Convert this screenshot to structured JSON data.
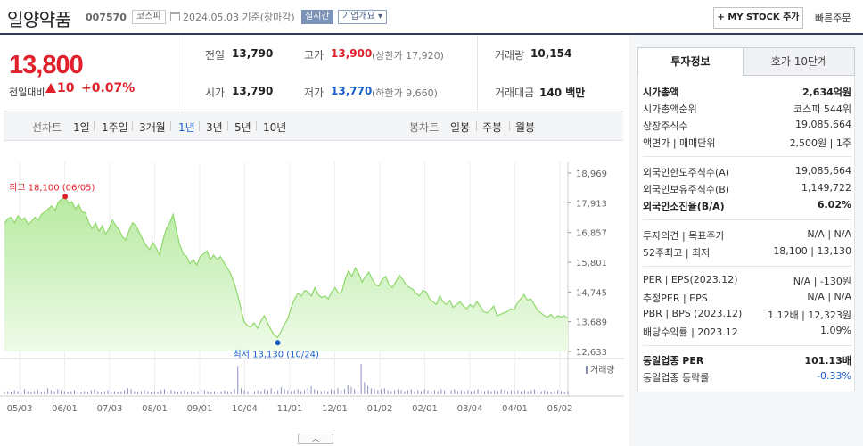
{
  "header": {
    "name": "일양약품",
    "code": "007570",
    "market_badge": "코스피",
    "date_text": "2024.05.03  기준(장마감)",
    "live_badge": "실시간",
    "overview_button": "기업개요 ▾",
    "mystock_button": "+ MY STOCK 추가",
    "quick_order": "빠른주문"
  },
  "price": {
    "current": "13,800",
    "change_label": "전일대비",
    "change_value": "10",
    "change_pct": "+0.07%"
  },
  "quotes": {
    "prev_label": "전일",
    "prev": "13,790",
    "open_label": "시가",
    "open": "13,790",
    "high_label": "고가",
    "high": "13,900",
    "upper_limit": "(상한가 17,920)",
    "low_label": "저가",
    "low": "13,770",
    "lower_limit": "(하한가 9,660)",
    "volume_label": "거래량",
    "volume": "10,154",
    "amount_label": "거래대금",
    "amount": "140 백만"
  },
  "tabs": {
    "line_chart": "선차트",
    "periods": [
      "1일",
      "1주일",
      "3개월",
      "1년",
      "3년",
      "5년",
      "10년"
    ],
    "active": "1년",
    "candle_chart": "봉차트",
    "candle_periods": [
      "일봉",
      "주봉",
      "월봉"
    ]
  },
  "chart_data": {
    "type": "area",
    "title": "",
    "x_ticks": [
      "05/03",
      "06/01",
      "07/03",
      "08/01",
      "09/01",
      "10/04",
      "11/01",
      "12/01",
      "01/02",
      "02/01",
      "03/04",
      "04/01",
      "05/02"
    ],
    "y_ticks": [
      "18,969",
      "17,913",
      "16,857",
      "15,801",
      "14,745",
      "13,689",
      "12,633"
    ],
    "ylim": [
      12633,
      18969
    ],
    "high_label": "최고 18,100 (06/05)",
    "low_label": "최저 13,130 (10/24)",
    "volume_label": "거래량",
    "price_series": [
      17180,
      17350,
      17400,
      17200,
      17450,
      17300,
      17380,
      17150,
      17250,
      17400,
      17300,
      17500,
      17600,
      17700,
      17800,
      17650,
      17950,
      18050,
      18100,
      17900,
      17950,
      17700,
      17850,
      17600,
      17550,
      17200,
      17000,
      17200,
      16900,
      17100,
      16800,
      17000,
      17300,
      17100,
      16950,
      16700,
      16600,
      16950,
      17200,
      17100,
      16850,
      16600,
      16400,
      16250,
      16500,
      16300,
      16050,
      16600,
      17000,
      17200,
      17500,
      16900,
      16400,
      16100,
      16000,
      15750,
      15900,
      15700,
      16000,
      16100,
      16200,
      15900,
      16050,
      15900,
      16000,
      15800,
      15600,
      15400,
      15100,
      14700,
      14200,
      13700,
      13550,
      13500,
      13650,
      13450,
      13700,
      13900,
      13650,
      13400,
      13200,
      13130,
      13350,
      13600,
      13800,
      14200,
      14500,
      14700,
      14600,
      14800,
      14750,
      14600,
      14900,
      14650,
      14550,
      14600,
      14500,
      14750,
      14900,
      14700,
      14750,
      15200,
      15500,
      15300,
      15600,
      15400,
      15100,
      15300,
      15450,
      15200,
      15000,
      14950,
      15200,
      15300,
      15000,
      14900,
      15100,
      15350,
      15200,
      15000,
      14900,
      14850,
      14700,
      14600,
      14800,
      14750,
      14500,
      14400,
      14300,
      14600,
      14400,
      14300,
      14450,
      14200,
      14300,
      14400,
      14250,
      14150,
      14300,
      14200,
      14400,
      14250,
      14050,
      14000,
      14100,
      14250,
      13900,
      13950,
      14000,
      14050,
      14150,
      14100,
      14350,
      14500,
      14650,
      14450,
      14500,
      14300,
      14100,
      14000,
      13900,
      13850,
      13950,
      13800,
      13900,
      13850,
      13900,
      13800
    ],
    "volume_series": [
      2,
      3,
      2,
      4,
      3,
      2,
      5,
      3,
      2,
      3,
      4,
      2,
      3,
      6,
      4,
      3,
      5,
      4,
      3,
      2,
      3,
      4,
      3,
      2,
      3,
      2,
      4,
      5,
      3,
      2,
      3,
      4,
      2,
      3,
      2,
      3,
      4,
      6,
      5,
      3,
      2,
      3,
      4,
      3,
      2,
      3,
      2,
      4,
      5,
      3,
      4,
      3,
      2,
      3,
      4,
      2,
      3,
      2,
      3,
      5,
      4,
      3,
      2,
      3,
      2,
      3,
      4,
      3,
      2,
      5,
      28,
      6,
      4,
      3,
      2,
      3,
      4,
      3,
      5,
      4,
      6,
      3,
      4,
      7,
      5,
      4,
      3,
      4,
      5,
      3,
      4,
      6,
      8,
      5,
      4,
      3,
      4,
      3,
      5,
      4,
      6,
      4,
      5,
      9,
      7,
      5,
      4,
      30,
      12,
      8,
      6,
      5,
      4,
      5,
      6,
      4,
      3,
      4,
      5,
      4,
      3,
      4,
      5,
      3,
      4,
      3,
      5,
      4,
      3,
      4,
      3,
      5,
      4,
      3,
      4,
      5,
      3,
      4,
      3,
      4,
      3,
      4,
      5,
      4,
      3,
      4,
      3,
      4,
      3,
      5,
      4,
      3,
      4,
      3,
      4,
      3,
      4,
      3,
      4,
      5,
      4,
      3,
      4,
      3,
      2,
      3,
      4,
      3,
      2,
      3
    ]
  },
  "chart_toggle": "︿",
  "right_panel": {
    "tab_on": "투자정보",
    "tab_off": "호가 10단계",
    "rows": [
      {
        "k": "시가총액",
        "v": "2,634억원"
      },
      {
        "k": "시가총액순위",
        "v": "코스피 544위"
      },
      {
        "k": "상장주식수",
        "v": "19,085,664"
      },
      {
        "k": "액면가 | 매매단위",
        "v": "2,500원 | 1주"
      },
      {
        "k": "외국인한도주식수(A)",
        "v": "19,085,664"
      },
      {
        "k": "외국인보유주식수(B)",
        "v": "1,149,722"
      },
      {
        "k": "외국인소진율(B/A)",
        "v": "6.02%"
      },
      {
        "k": "투자의견 | 목표주가",
        "v": "N/A | N/A"
      },
      {
        "k": "52주최고 | 최저",
        "v": "18,100 | 13,130"
      },
      {
        "k": "PER | EPS(2023.12)",
        "v": "N/A | -130원"
      },
      {
        "k": "추정PER | EPS",
        "v": "N/A | N/A"
      },
      {
        "k": "PBR | BPS (2023.12)",
        "v": "1.12배 | 12,323원"
      },
      {
        "k": "배당수익률 | 2023.12",
        "v": "1.09%"
      },
      {
        "k": "동일업종 PER",
        "v": "101.13배"
      },
      {
        "k": "동일업종 등락률",
        "v": "-0.33%"
      }
    ]
  }
}
